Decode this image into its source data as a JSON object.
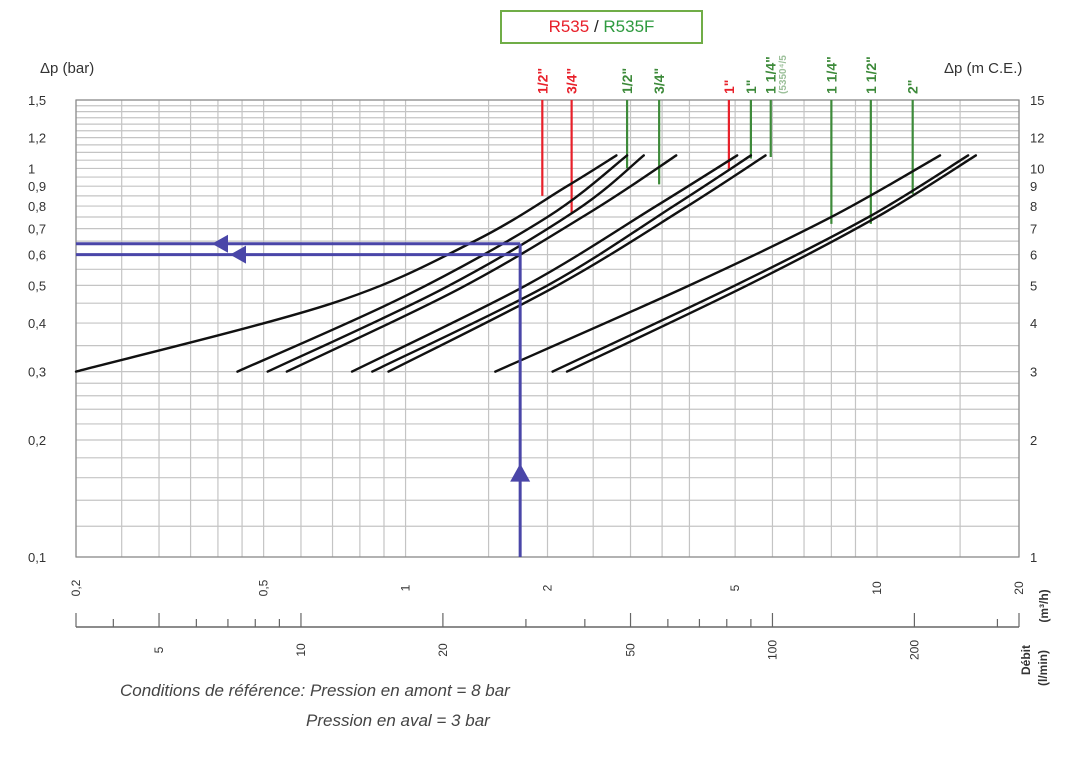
{
  "legend": {
    "r535": "R535",
    "sep": " / ",
    "r535f": "R535F",
    "color_r535": "#e8202a",
    "color_r535f": "#2e9a3f",
    "box_border": "#70ad47"
  },
  "chart_data": {
    "type": "line",
    "scale": "log-log",
    "x_axis": {
      "unit_label": "(m³/h)",
      "unit_label_2": "(l/min)",
      "title_secondary": "Débit",
      "range": [
        0.2,
        20
      ],
      "ticks": [
        "0,2",
        "0,5",
        "1",
        "2",
        "5",
        "10",
        "20"
      ],
      "secondary_ticks": [
        "5",
        "10",
        "20",
        "50",
        "100",
        "200"
      ]
    },
    "y_axis_left": {
      "title": "Δp (bar)",
      "range": [
        0.1,
        1.5
      ],
      "ticks": [
        "0,1",
        "0,2",
        "0,3",
        "0,4",
        "0,5",
        "0,6",
        "0,7",
        "0,8",
        "0,9",
        "1",
        "1,2",
        "1,5"
      ]
    },
    "y_axis_right": {
      "title": "Δp (m C.E.)",
      "ticks": [
        "1",
        "2",
        "3",
        "4",
        "5",
        "6",
        "7",
        "8",
        "9",
        "10",
        "12",
        "15"
      ]
    },
    "size_labels": [
      {
        "text": "1/2\"",
        "x": 1.95,
        "y_top": 0.85,
        "color": "red"
      },
      {
        "text": "3/4\"",
        "x": 2.25,
        "y_top": 0.77,
        "color": "red"
      },
      {
        "text": "1/2\"",
        "x": 2.95,
        "y_top": 1.0,
        "color": "green"
      },
      {
        "text": "3/4\"",
        "x": 3.45,
        "y_top": 0.91,
        "color": "green"
      },
      {
        "text": "1\"",
        "x": 4.85,
        "y_top": 0.99,
        "color": "red"
      },
      {
        "text": "1\"",
        "x": 5.4,
        "y_top": 1.06,
        "color": "green"
      },
      {
        "text": "1 1/4\"",
        "x": 5.95,
        "y_top": 1.07,
        "color": "green"
      },
      {
        "text": "(5350⁴/5",
        "x": 6.25,
        "y_top": 1.07,
        "color": "lightgreen"
      },
      {
        "text": "1 1/4\"",
        "x": 8.0,
        "y_top": 0.72,
        "color": "green"
      },
      {
        "text": "1 1/2\"",
        "x": 9.7,
        "y_top": 0.72,
        "color": "green"
      },
      {
        "text": "2\"",
        "x": 11.9,
        "y_top": 0.86,
        "color": "green"
      }
    ],
    "series": [
      {
        "x": [
          0.2,
          0.7,
          1.4,
          2.2,
          2.8
        ],
        "y": [
          0.3,
          0.45,
          0.65,
          0.9,
          1.08
        ]
      },
      {
        "x": [
          0.44,
          1.0,
          2.0,
          2.95
        ],
        "y": [
          0.3,
          0.47,
          0.75,
          1.08
        ]
      },
      {
        "x": [
          0.51,
          1.2,
          2.3,
          3.2
        ],
        "y": [
          0.3,
          0.49,
          0.78,
          1.08
        ]
      },
      {
        "x": [
          0.56,
          1.3,
          2.5,
          3.75
        ],
        "y": [
          0.3,
          0.49,
          0.78,
          1.08
        ]
      },
      {
        "x": [
          0.77,
          1.8,
          3.4,
          5.05
        ],
        "y": [
          0.3,
          0.5,
          0.8,
          1.08
        ]
      },
      {
        "x": [
          0.85,
          2.0,
          3.7,
          5.4
        ],
        "y": [
          0.3,
          0.5,
          0.8,
          1.08
        ]
      },
      {
        "x": [
          0.92,
          2.1,
          3.9,
          5.8
        ],
        "y": [
          0.3,
          0.5,
          0.79,
          1.08
        ]
      },
      {
        "x": [
          1.55,
          4.0,
          8.0,
          13.6
        ],
        "y": [
          0.3,
          0.5,
          0.75,
          1.08
        ]
      },
      {
        "x": [
          2.05,
          5.0,
          9.6,
          15.6
        ],
        "y": [
          0.3,
          0.5,
          0.75,
          1.08
        ]
      },
      {
        "x": [
          2.2,
          5.3,
          10.0,
          16.2
        ],
        "y": [
          0.3,
          0.5,
          0.75,
          1.08
        ]
      }
    ],
    "example": {
      "x": 1.75,
      "y_values": [
        0.64,
        0.6
      ],
      "color": "#4a46a8"
    }
  },
  "notes": {
    "line1": "Conditions de référence: Pression en amont = 8 bar",
    "line2": "Pression en aval = 3 bar"
  }
}
